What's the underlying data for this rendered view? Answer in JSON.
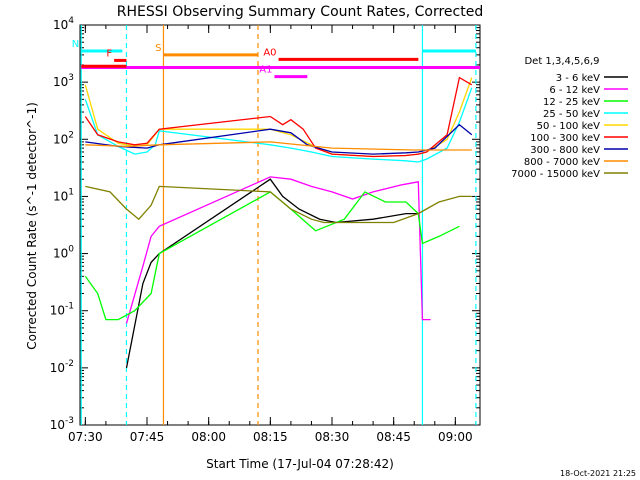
{
  "footer_stamp": "18-Oct-2021 21:25",
  "chart_data": {
    "type": "line",
    "title": "RHESSI Observing Summary Count Rates, Corrected",
    "xlabel": "Start Time (17-Jul-04 07:28:42)",
    "ylabel": "Corrected Count Rate (s^-1 detector^-1)",
    "y_scale": "log",
    "ylim": [
      0.001,
      10000
    ],
    "xlim": [
      "07:28:42",
      "09:06:00"
    ],
    "x_ticks": [
      "07:30",
      "07:45",
      "08:00",
      "08:15",
      "08:30",
      "08:45",
      "09:00"
    ],
    "y_ticks": [
      "10^-3",
      "10^-2",
      "10^-1",
      "10^0",
      "10^1",
      "10^2",
      "10^3",
      "10^4"
    ],
    "legend": {
      "title": "Det 1,3,4,5,6,9",
      "placement": "right"
    },
    "series": [
      {
        "name": "3 - 6 keV",
        "color": "#000000",
        "x": [
          "07:40",
          "07:44",
          "07:46",
          "07:48",
          "08:15",
          "08:18",
          "08:22",
          "08:27",
          "08:31",
          "08:40",
          "08:48",
          "08:51"
        ],
        "y": [
          0.01,
          0.3,
          0.7,
          1.0,
          20,
          10,
          6,
          4,
          3.5,
          4,
          5,
          5
        ]
      },
      {
        "name": "6 - 12 keV",
        "color": "#ff00ff",
        "x": [
          "07:40",
          "07:44",
          "07:46",
          "07:48",
          "08:15",
          "08:20",
          "08:25",
          "08:30",
          "08:35",
          "08:40",
          "08:47",
          "08:51",
          "08:52",
          "08:54"
        ],
        "y": [
          0.06,
          0.6,
          2.0,
          3.0,
          22,
          20,
          15,
          12,
          9,
          12,
          16,
          18,
          0.07,
          0.07
        ]
      },
      {
        "name": "12 - 25 keV",
        "color": "#00ff00",
        "x": [
          "07:30",
          "07:33",
          "07:35",
          "07:38",
          "07:42",
          "07:46",
          "07:48",
          "08:15",
          "08:20",
          "08:26",
          "08:33",
          "08:38",
          "08:43",
          "08:48",
          "08:51",
          "08:52",
          "08:56",
          "09:01"
        ],
        "y": [
          0.4,
          0.2,
          0.07,
          0.07,
          0.1,
          0.2,
          1.0,
          12,
          6,
          2.5,
          4,
          12,
          8,
          8,
          5,
          1.5,
          2,
          3
        ]
      },
      {
        "name": "25 - 50 keV",
        "color": "#00ffff",
        "x": [
          "07:30",
          "07:33",
          "07:38",
          "07:42",
          "07:45",
          "07:47",
          "07:48",
          "08:15",
          "08:20",
          "08:25",
          "08:30",
          "08:40",
          "08:48",
          "08:51",
          "08:53",
          "08:58",
          "09:01",
          "09:04"
        ],
        "y": [
          500,
          120,
          75,
          55,
          60,
          80,
          140,
          80,
          70,
          60,
          50,
          45,
          42,
          40,
          45,
          70,
          200,
          800
        ]
      },
      {
        "name": "50 - 100 keV",
        "color": "#ffd700",
        "x": [
          "07:30",
          "07:33",
          "07:38",
          "07:42",
          "07:45",
          "07:48",
          "08:15",
          "08:20",
          "08:25",
          "08:30",
          "08:40",
          "08:48",
          "08:51",
          "08:53",
          "08:58",
          "09:01",
          "09:04"
        ],
        "y": [
          900,
          150,
          85,
          75,
          80,
          150,
          150,
          120,
          80,
          55,
          50,
          52,
          55,
          60,
          100,
          300,
          1200
        ]
      },
      {
        "name": "100 - 300 keV",
        "color": "#ff0000",
        "x": [
          "07:30",
          "07:33",
          "07:38",
          "07:42",
          "07:45",
          "07:48",
          "08:15",
          "08:18",
          "08:20",
          "08:23",
          "08:26",
          "08:30",
          "08:40",
          "08:48",
          "08:51",
          "08:53",
          "08:58",
          "09:01",
          "09:04"
        ],
        "y": [
          250,
          120,
          90,
          80,
          85,
          150,
          250,
          180,
          220,
          150,
          70,
          55,
          50,
          52,
          55,
          60,
          120,
          1200,
          900
        ]
      },
      {
        "name": "300 - 800 keV",
        "color": "#0000aa",
        "x": [
          "07:30",
          "07:38",
          "07:45",
          "07:48",
          "08:15",
          "08:20",
          "08:24",
          "08:30",
          "08:40",
          "08:48",
          "08:51",
          "08:55",
          "09:01",
          "09:04"
        ],
        "y": [
          90,
          75,
          70,
          80,
          150,
          130,
          80,
          60,
          55,
          58,
          60,
          70,
          180,
          120
        ]
      },
      {
        "name": "800 - 7000 keV",
        "color": "#ff8c00",
        "x": [
          "07:30",
          "07:40",
          "07:48",
          "08:15",
          "08:30",
          "08:50",
          "09:00",
          "09:04"
        ],
        "y": [
          80,
          75,
          80,
          90,
          70,
          65,
          65,
          65
        ]
      },
      {
        "name": "7000 - 15000 keV",
        "color": "#808000",
        "x": [
          "07:30",
          "07:36",
          "07:40",
          "07:43",
          "07:46",
          "07:48",
          "08:15",
          "08:20",
          "08:25",
          "08:28",
          "08:35",
          "08:45",
          "08:51",
          "08:56",
          "09:01",
          "09:04"
        ],
        "y": [
          15,
          12,
          6,
          4,
          7,
          15,
          12,
          6,
          4,
          3.5,
          3.5,
          3.5,
          5,
          8,
          10,
          10
        ]
      }
    ],
    "status_bars": [
      {
        "label": "N",
        "color": "#00ffff",
        "x": [
          "07:29",
          "07:39"
        ],
        "y": 3500
      },
      {
        "label": "S",
        "color": "#ff8c00",
        "x": [
          "07:49",
          "08:12"
        ],
        "y": 3000
      },
      {
        "label": "F",
        "color": "#ff0000",
        "x": [
          "07:37",
          "07:40"
        ],
        "y": 2400
      },
      {
        "label": "A0",
        "color": "#ff0000",
        "x": [
          "08:17",
          "08:51"
        ],
        "y": 2500
      },
      {
        "label": "A1",
        "color": "#ff00ff",
        "x": [
          "08:16",
          "08:24"
        ],
        "y": 1250
      },
      {
        "label": "",
        "color": "#ff00ff",
        "x": [
          "07:29",
          "09:06"
        ],
        "y": 1800
      },
      {
        "label": "",
        "color": "#00ffff",
        "x": [
          "08:52",
          "09:05"
        ],
        "y": 3500
      },
      {
        "label": "",
        "color": "#ff0000",
        "x": [
          "07:29",
          "07:40"
        ],
        "y": 1900
      }
    ],
    "vertical_markers": [
      {
        "x": "07:29",
        "color": "#00ffff",
        "style": "solid"
      },
      {
        "x": "07:40",
        "color": "#00ffff",
        "style": "dashed"
      },
      {
        "x": "07:49",
        "color": "#ff8c00",
        "style": "solid"
      },
      {
        "x": "08:12",
        "color": "#ff8c00",
        "style": "dashed"
      },
      {
        "x": "08:52",
        "color": "#00ffff",
        "style": "solid"
      },
      {
        "x": "09:05",
        "color": "#00ffff",
        "style": "dashed"
      }
    ]
  }
}
